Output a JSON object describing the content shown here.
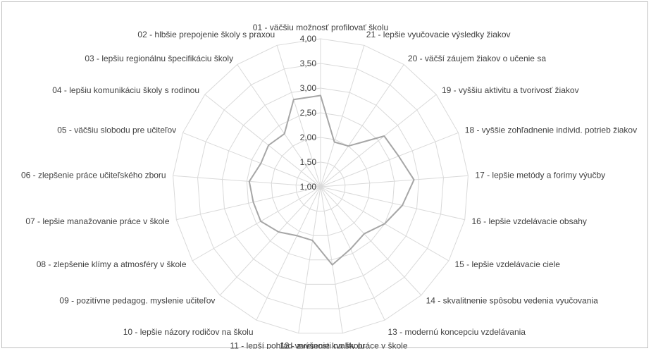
{
  "chart_data": {
    "type": "radar",
    "title": "",
    "rlim": [
      1,
      4
    ],
    "ticks": [
      "1,00",
      "1,50",
      "2,00",
      "2,50",
      "3,00",
      "3,50",
      "4,00"
    ],
    "tick_values": [
      1.0,
      1.5,
      2.0,
      2.5,
      3.0,
      3.5,
      4.0
    ],
    "grid": true,
    "legend": "none",
    "categories": [
      "01 - väčšiu možnosť profilovať školu",
      "21 - lepšie vyučovacie výsledky žiakov",
      "20 - väčší záujem žiakov o učenie sa",
      "19 - vyššiu aktivitu a tvorivosť žiakov",
      "18 - vyššie zohľadnenie individ. potrieb žiakov",
      "17 - lepšie metódy a forimy výučby",
      "16 - lepšie vzdelávacie obsahy",
      "15 - lepšie vzdelávacie ciele",
      "14 - skvalitnenie spôsobu vedenia vyučovania",
      "13 - modernú koncepciu vzdelávania",
      "12 - zvýšenie kvality práce v škole",
      "11 - lepší pohľad verejnosti na školu",
      "10 - lepšie názory rodičov na školu",
      "09 - pozitívne pedagog. myslenie učiteľov",
      "08 - zlepšenie klímy a atmosféry v škole",
      "07 - lepšie manažovanie práce v škole",
      "06 - zlepšenie práce učiteľského zboru",
      "05 - väčšiu slobodu pre učiteľov",
      "04 - lepšiu komunikáciu školy s rodinou",
      "03 - lepšiu regionálnu špecifikáciu školy",
      "02 - hlbšie prepojenie školy s praxou"
    ],
    "series": [
      {
        "values": [
          2.85,
          1.95,
          2.0,
          2.65,
          2.7,
          2.9,
          2.7,
          2.5,
          2.3,
          2.4,
          2.6,
          2.1,
          2.1,
          2.25,
          2.4,
          2.4,
          2.45,
          2.3,
          2.35,
          2.3,
          2.85
        ]
      }
    ],
    "colors": {
      "series": "#a6a6a6",
      "grid": "#d9d9d9",
      "text": "#404040"
    }
  }
}
